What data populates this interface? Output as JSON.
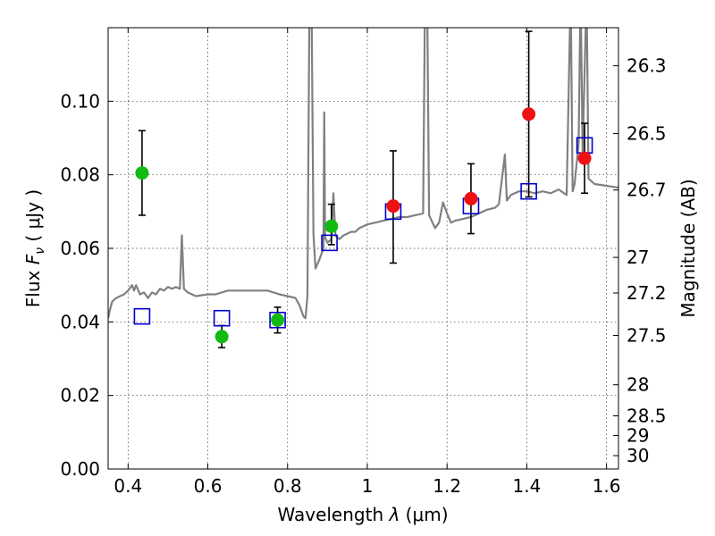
{
  "chart_data": {
    "type": "scatter",
    "x_axis": {
      "label_main": "Wavelength ",
      "label_symbol": "λ",
      "label_unit": " (μm)",
      "range": [
        0.35,
        1.63
      ],
      "ticks": [
        0.4,
        0.6,
        0.8,
        1.0,
        1.2,
        1.4,
        1.6
      ],
      "tick_labels": [
        "0.4",
        "0.6",
        "0.8",
        "1",
        "1.2",
        "1.4",
        "1.6"
      ]
    },
    "y_axis": {
      "label_main": "Flux  ",
      "label_symbol": "F",
      "label_subscript": "ν",
      "label_unit": "  ( μJy )",
      "range": [
        0.0,
        0.12
      ],
      "ticks": [
        0.0,
        0.02,
        0.04,
        0.06,
        0.08,
        0.1
      ],
      "tick_labels": [
        "0.00",
        "0.02",
        "0.04",
        "0.06",
        "0.08",
        "0.10"
      ]
    },
    "y2_axis": {
      "label": "Magnitude (AB)",
      "ticks": [
        26.3,
        26.5,
        26.7,
        27,
        27.2,
        27.5,
        28,
        28.5,
        29,
        30
      ],
      "tick_labels": [
        "26.3",
        "26.5",
        "26.7",
        "27",
        "27.2",
        "27.5",
        "28",
        "28.5",
        "29",
        "30"
      ]
    },
    "grid": true,
    "colors": {
      "model_sed": "#808080",
      "green_points": "#11bb11",
      "red_points": "#ee1111",
      "blue_squares": "#0000cc",
      "errorbars": "#000000"
    },
    "series": [
      {
        "kind": "model-spectrum",
        "points": [
          [
            0.35,
            0.041
          ],
          [
            0.355,
            0.0435
          ],
          [
            0.36,
            0.0455
          ],
          [
            0.37,
            0.0465
          ],
          [
            0.38,
            0.047
          ],
          [
            0.39,
            0.0475
          ],
          [
            0.4,
            0.0485
          ],
          [
            0.41,
            0.05
          ],
          [
            0.415,
            0.0485
          ],
          [
            0.42,
            0.05
          ],
          [
            0.43,
            0.0475
          ],
          [
            0.44,
            0.048
          ],
          [
            0.45,
            0.0465
          ],
          [
            0.46,
            0.048
          ],
          [
            0.47,
            0.0475
          ],
          [
            0.48,
            0.049
          ],
          [
            0.49,
            0.0485
          ],
          [
            0.5,
            0.0495
          ],
          [
            0.51,
            0.049
          ],
          [
            0.52,
            0.0495
          ],
          [
            0.53,
            0.049
          ],
          [
            0.535,
            0.0635
          ],
          [
            0.54,
            0.049
          ],
          [
            0.55,
            0.048
          ],
          [
            0.57,
            0.047
          ],
          [
            0.6,
            0.0475
          ],
          [
            0.62,
            0.0475
          ],
          [
            0.65,
            0.0485
          ],
          [
            0.68,
            0.0485
          ],
          [
            0.7,
            0.0485
          ],
          [
            0.72,
            0.0485
          ],
          [
            0.75,
            0.0485
          ],
          [
            0.78,
            0.0475
          ],
          [
            0.8,
            0.047
          ],
          [
            0.82,
            0.0465
          ],
          [
            0.83,
            0.0445
          ],
          [
            0.84,
            0.0415
          ],
          [
            0.845,
            0.041
          ],
          [
            0.85,
            0.047
          ],
          [
            0.855,
            0.13
          ],
          [
            0.86,
            0.13
          ],
          [
            0.865,
            0.064
          ],
          [
            0.87,
            0.0545
          ],
          [
            0.88,
            0.057
          ],
          [
            0.89,
            0.06
          ],
          [
            0.892,
            0.097
          ],
          [
            0.894,
            0.063
          ],
          [
            0.9,
            0.0615
          ],
          [
            0.91,
            0.0625
          ],
          [
            0.915,
            0.075
          ],
          [
            0.92,
            0.0635
          ],
          [
            0.93,
            0.0625
          ],
          [
            0.94,
            0.0635
          ],
          [
            0.95,
            0.064
          ],
          [
            0.96,
            0.0645
          ],
          [
            0.97,
            0.0645
          ],
          [
            0.98,
            0.0655
          ],
          [
            1.0,
            0.0665
          ],
          [
            1.02,
            0.067
          ],
          [
            1.04,
            0.0675
          ],
          [
            1.06,
            0.068
          ],
          [
            1.08,
            0.0685
          ],
          [
            1.1,
            0.0685
          ],
          [
            1.12,
            0.069
          ],
          [
            1.14,
            0.0695
          ],
          [
            1.145,
            0.13
          ],
          [
            1.15,
            0.13
          ],
          [
            1.155,
            0.069
          ],
          [
            1.17,
            0.0655
          ],
          [
            1.18,
            0.067
          ],
          [
            1.19,
            0.0725
          ],
          [
            1.2,
            0.0695
          ],
          [
            1.21,
            0.067
          ],
          [
            1.22,
            0.0675
          ],
          [
            1.24,
            0.068
          ],
          [
            1.26,
            0.0685
          ],
          [
            1.28,
            0.0695
          ],
          [
            1.3,
            0.0705
          ],
          [
            1.32,
            0.071
          ],
          [
            1.33,
            0.072
          ],
          [
            1.345,
            0.0855
          ],
          [
            1.35,
            0.073
          ],
          [
            1.36,
            0.0745
          ],
          [
            1.38,
            0.0755
          ],
          [
            1.4,
            0.0755
          ],
          [
            1.42,
            0.075
          ],
          [
            1.44,
            0.0755
          ],
          [
            1.46,
            0.075
          ],
          [
            1.48,
            0.076
          ],
          [
            1.5,
            0.0745
          ],
          [
            1.51,
            0.13
          ],
          [
            1.515,
            0.0755
          ],
          [
            1.52,
            0.0775
          ],
          [
            1.53,
            0.0885
          ],
          [
            1.535,
            0.13
          ],
          [
            1.54,
            0.086
          ],
          [
            1.55,
            0.13
          ],
          [
            1.555,
            0.079
          ],
          [
            1.57,
            0.0775
          ],
          [
            1.6,
            0.077
          ],
          [
            1.63,
            0.0765
          ]
        ]
      },
      {
        "kind": "green-points",
        "points": [
          {
            "x": 0.435,
            "y": 0.0805,
            "yerr_low": 0.069,
            "yerr_high": 0.092
          },
          {
            "x": 0.635,
            "y": 0.036,
            "yerr_low": 0.033,
            "yerr_high": 0.039
          },
          {
            "x": 0.775,
            "y": 0.0405,
            "yerr_low": 0.037,
            "yerr_high": 0.044
          },
          {
            "x": 0.91,
            "y": 0.066,
            "yerr_low": 0.061,
            "yerr_high": 0.072
          }
        ]
      },
      {
        "kind": "red-points",
        "points": [
          {
            "x": 1.065,
            "y": 0.0715,
            "yerr_low": 0.056,
            "yerr_high": 0.0865
          },
          {
            "x": 1.26,
            "y": 0.0735,
            "yerr_low": 0.064,
            "yerr_high": 0.083
          },
          {
            "x": 1.405,
            "y": 0.0965,
            "yerr_low": 0.074,
            "yerr_high": 0.119
          },
          {
            "x": 1.545,
            "y": 0.0845,
            "yerr_low": 0.075,
            "yerr_high": 0.094
          }
        ]
      },
      {
        "kind": "blue-squares",
        "points": [
          {
            "x": 0.435,
            "y": 0.0415
          },
          {
            "x": 0.635,
            "y": 0.041
          },
          {
            "x": 0.775,
            "y": 0.0405
          },
          {
            "x": 0.905,
            "y": 0.0615
          },
          {
            "x": 1.065,
            "y": 0.07
          },
          {
            "x": 1.26,
            "y": 0.0715
          },
          {
            "x": 1.405,
            "y": 0.0755
          },
          {
            "x": 1.545,
            "y": 0.088
          }
        ]
      }
    ]
  }
}
